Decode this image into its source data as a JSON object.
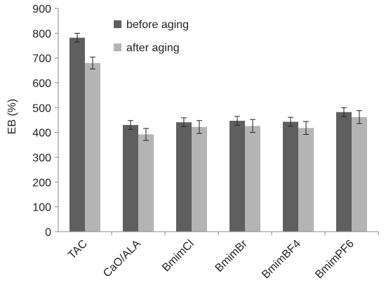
{
  "chart_data": {
    "type": "bar",
    "categories": [
      "TAC",
      "CaO/ALA",
      "BmimCl",
      "BmimBr",
      "BmimBF4",
      "BmimPF6"
    ],
    "series": [
      {
        "name": "before aging",
        "color": "#5f5f5f",
        "values": [
          782,
          430,
          441,
          447,
          443,
          482
        ],
        "errors": [
          18,
          18,
          18,
          18,
          18,
          18
        ]
      },
      {
        "name": "after aging",
        "color": "#b4b4b4",
        "values": [
          680,
          392,
          422,
          426,
          418,
          462
        ],
        "errors": [
          24,
          24,
          26,
          26,
          26,
          26
        ]
      }
    ],
    "ylabel": "EB (%)",
    "xlabel": "",
    "ylim": [
      0,
      900
    ],
    "yticks": [
      0,
      100,
      200,
      300,
      400,
      500,
      600,
      700,
      800,
      900
    ],
    "grid": false,
    "legend_position": "top-center"
  }
}
